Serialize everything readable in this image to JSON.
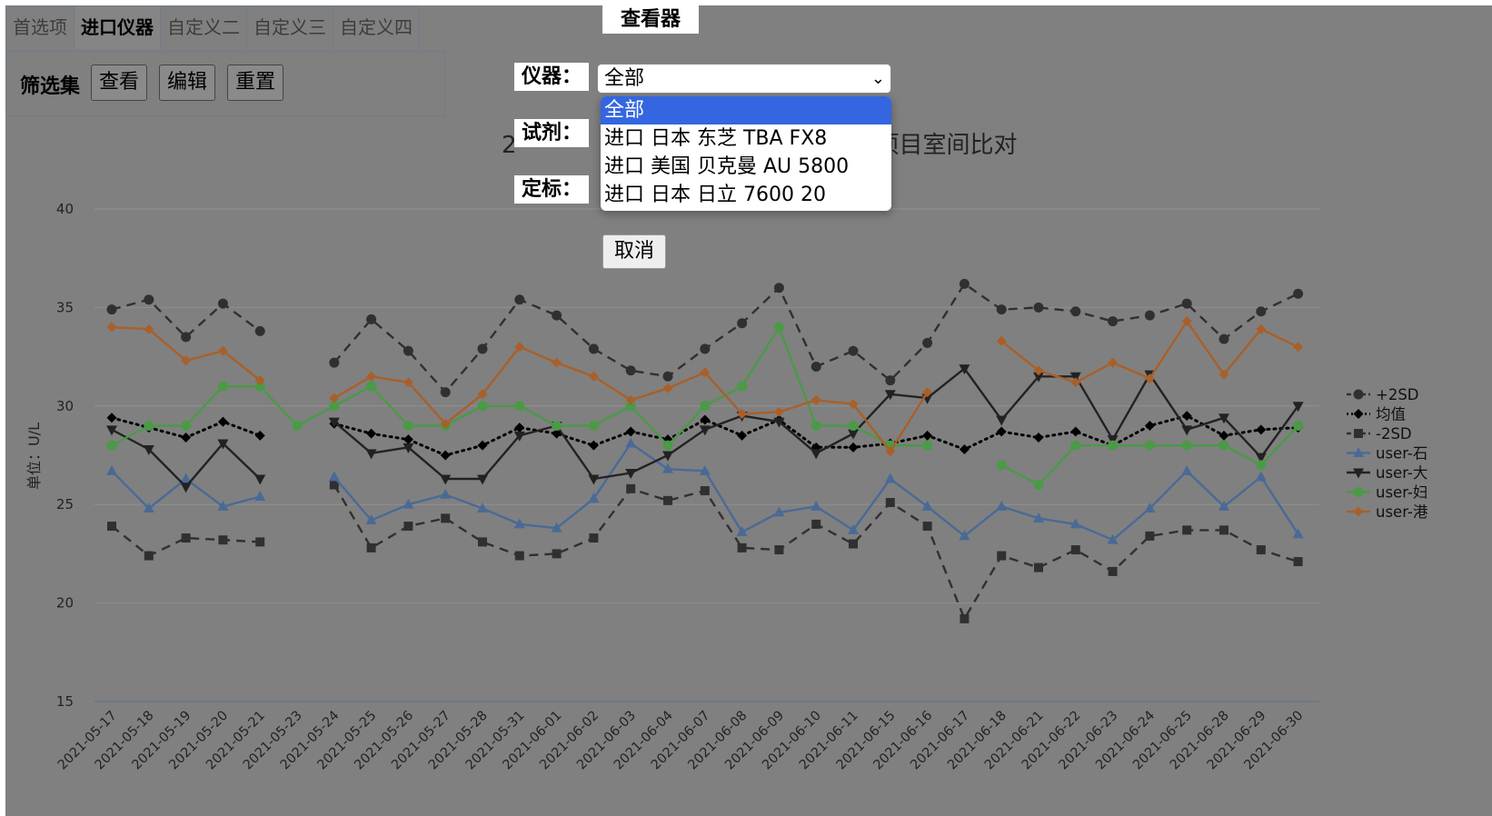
{
  "tabs": [
    {
      "label": "首选项"
    },
    {
      "label": "进口仪器"
    },
    {
      "label": "自定义二"
    },
    {
      "label": "自定义三"
    },
    {
      "label": "自定义四"
    }
  ],
  "filter": {
    "title": "筛选集",
    "view": "查看",
    "edit": "编辑",
    "reset": "重置"
  },
  "viewer": {
    "title": "查看器",
    "instrument_label": "仪器：",
    "reagent_label": "试剂：",
    "calibrator_label": "定标：",
    "instrument_value": "全部",
    "options": [
      "全部",
      "进口 日本 东芝 TBA FX8",
      "进口 美国 贝克曼 AU 5800",
      "进口 日本 日立 7600 20"
    ],
    "cancel": "取消"
  },
  "chart_title_left": "2",
  "chart_title_right": "项目室间比对",
  "colors": {
    "background": "#808080",
    "sd": "#303030",
    "mean": "#000000",
    "blue": "#4a6a96",
    "black": "#222222",
    "green": "#4a9a46",
    "orange": "#a8602a",
    "selected_option": "#3366e0"
  },
  "chart_data": {
    "type": "line",
    "ylabel": "单位：U/L",
    "ylim": [
      15,
      40
    ],
    "yticks": [
      15,
      20,
      25,
      30,
      35,
      40
    ],
    "grid": true,
    "legend_position": "right",
    "categories": [
      "2021-05-17",
      "2021-05-18",
      "2021-05-19",
      "2021-05-20",
      "2021-05-21",
      "2021-05-23",
      "2021-05-24",
      "2021-05-25",
      "2021-05-26",
      "2021-05-27",
      "2021-05-28",
      "2021-05-31",
      "2021-06-01",
      "2021-06-02",
      "2021-06-03",
      "2021-06-04",
      "2021-06-07",
      "2021-06-08",
      "2021-06-09",
      "2021-06-10",
      "2021-06-11",
      "2021-06-15",
      "2021-06-16",
      "2021-06-17",
      "2021-06-18",
      "2021-06-21",
      "2021-06-22",
      "2021-06-23",
      "2021-06-24",
      "2021-06-25",
      "2021-06-28",
      "2021-06-29",
      "2021-06-30"
    ],
    "series": [
      {
        "name": "+2SD",
        "color": "#303030",
        "style": "dashed",
        "marker": "circle",
        "values": [
          34.9,
          35.4,
          33.5,
          35.2,
          33.8,
          null,
          32.2,
          34.4,
          32.8,
          30.7,
          32.9,
          35.4,
          34.6,
          32.9,
          31.8,
          31.5,
          32.9,
          34.2,
          36.0,
          32.0,
          32.8,
          31.3,
          33.2,
          36.2,
          34.9,
          35.0,
          34.8,
          34.3,
          34.6,
          35.2,
          33.4,
          34.8,
          35.7
        ]
      },
      {
        "name": "均值",
        "color": "#000000",
        "style": "dotted",
        "marker": "diamond",
        "values": [
          29.4,
          28.9,
          28.4,
          29.2,
          28.5,
          null,
          29.1,
          28.6,
          28.3,
          27.5,
          28.0,
          28.9,
          28.6,
          28.0,
          28.7,
          28.3,
          29.3,
          28.5,
          29.3,
          27.9,
          27.9,
          28.1,
          28.5,
          27.8,
          28.7,
          28.4,
          28.7,
          28.0,
          29.0,
          29.5,
          28.5,
          28.8,
          28.9
        ]
      },
      {
        "name": "-2SD",
        "color": "#303030",
        "style": "dashed",
        "marker": "square",
        "values": [
          23.9,
          22.4,
          23.3,
          23.2,
          23.1,
          null,
          26.0,
          22.8,
          23.9,
          24.3,
          23.1,
          22.4,
          22.5,
          23.3,
          25.8,
          25.2,
          25.7,
          22.8,
          22.7,
          24.0,
          23.0,
          25.1,
          23.9,
          19.2,
          22.4,
          21.8,
          22.7,
          21.6,
          23.4,
          23.7,
          23.7,
          22.7,
          22.1
        ]
      },
      {
        "name": "user-石",
        "color": "#4a6a96",
        "style": "solid",
        "marker": "triangle",
        "values": [
          26.7,
          24.8,
          26.3,
          24.9,
          25.4,
          null,
          26.4,
          24.2,
          25.0,
          25.5,
          24.8,
          24.0,
          23.8,
          25.3,
          28.1,
          26.8,
          26.7,
          23.6,
          24.6,
          24.9,
          23.7,
          26.3,
          24.9,
          23.4,
          24.9,
          24.3,
          24.0,
          23.2,
          24.8,
          26.7,
          24.9,
          26.4,
          23.5
        ]
      },
      {
        "name": "user-大",
        "color": "#222222",
        "style": "solid",
        "marker": "triangle-down",
        "values": [
          28.8,
          27.8,
          25.9,
          28.1,
          26.3,
          null,
          29.2,
          27.6,
          27.9,
          26.3,
          26.3,
          28.5,
          29.0,
          26.3,
          26.6,
          27.5,
          28.8,
          29.5,
          29.2,
          27.6,
          28.6,
          30.6,
          30.4,
          31.9,
          29.3,
          31.5,
          31.5,
          28.3,
          31.6,
          28.8,
          29.4,
          27.4,
          30.0
        ]
      },
      {
        "name": "user-妇",
        "color": "#4a9a46",
        "style": "solid",
        "marker": "circle",
        "values": [
          28.0,
          29.0,
          29.0,
          31.0,
          31.0,
          29.0,
          30.0,
          31.0,
          29.0,
          29.0,
          30.0,
          30.0,
          29.0,
          29.0,
          30.0,
          28.0,
          30.0,
          31.0,
          34.0,
          29.0,
          29.0,
          28.0,
          28.0,
          null,
          27.0,
          26.0,
          28.0,
          28.0,
          28.0,
          28.0,
          28.0,
          27.0,
          29.0
        ]
      },
      {
        "name": "user-港",
        "color": "#a8602a",
        "style": "solid",
        "marker": "diamond",
        "values": [
          34.0,
          33.9,
          32.3,
          32.8,
          31.3,
          null,
          30.4,
          31.5,
          31.2,
          29.1,
          30.6,
          33.0,
          32.2,
          31.5,
          30.3,
          30.9,
          31.7,
          29.6,
          29.7,
          30.3,
          30.1,
          27.7,
          30.7,
          null,
          33.3,
          31.8,
          31.2,
          32.2,
          31.4,
          34.3,
          31.6,
          33.9,
          33.0
        ]
      }
    ]
  }
}
